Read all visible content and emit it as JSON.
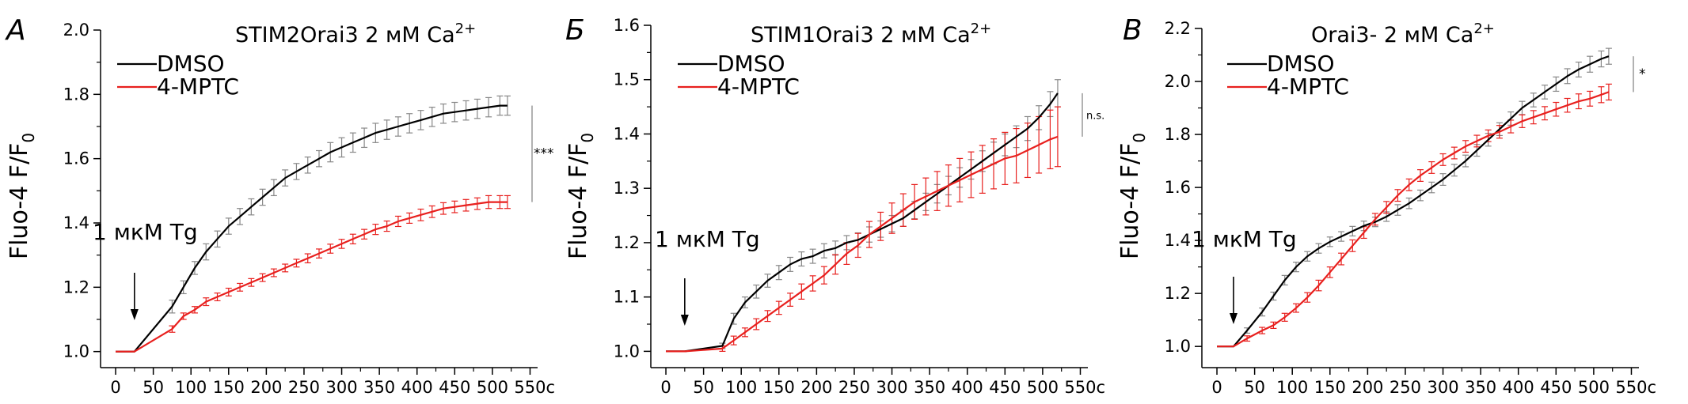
{
  "chart_data": [
    {
      "type": "line",
      "panel_label": "А",
      "title_main": "STIM2Orai3  2 мМ Ca",
      "title_sup": "2+",
      "ylabel_main": "Fluo-4  F/F",
      "ylabel_sub": "0",
      "x_unit": "c",
      "xlim": [
        -20,
        560
      ],
      "ylim": [
        0.95,
        2.0
      ],
      "xticks": [
        0,
        50,
        100,
        150,
        200,
        250,
        300,
        350,
        400,
        450,
        500,
        550
      ],
      "xtick_labels": [
        "0",
        "50",
        "100",
        "150",
        "200",
        "250",
        "300",
        "350",
        "400",
        "450",
        "500",
        "550"
      ],
      "yticks": [
        1.0,
        1.2,
        1.4,
        1.6,
        1.8,
        2.0
      ],
      "ytick_labels": [
        "1.0",
        "1.2",
        "1.4",
        "1.6",
        "1.8",
        "2.0"
      ],
      "annotation": "1 мкМ Tg",
      "annotation_x": 25,
      "significance": "***",
      "legend": [
        "DMSO",
        "4-MPTC"
      ],
      "series": [
        {
          "name": "DMSO",
          "color": "#000000",
          "errbar_color": "#888888",
          "x": [
            0,
            25,
            75,
            90,
            105,
            120,
            135,
            150,
            165,
            180,
            195,
            210,
            225,
            240,
            255,
            270,
            285,
            300,
            315,
            330,
            345,
            360,
            375,
            390,
            405,
            420,
            435,
            450,
            465,
            480,
            495,
            510,
            520
          ],
          "y": [
            1.0,
            1.0,
            1.14,
            1.2,
            1.26,
            1.31,
            1.35,
            1.39,
            1.42,
            1.45,
            1.48,
            1.51,
            1.54,
            1.56,
            1.58,
            1.6,
            1.62,
            1.635,
            1.65,
            1.665,
            1.68,
            1.69,
            1.7,
            1.71,
            1.72,
            1.73,
            1.74,
            1.745,
            1.75,
            1.755,
            1.76,
            1.765,
            1.765
          ],
          "err": [
            0,
            0,
            0.02,
            0.02,
            0.02,
            0.025,
            0.025,
            0.025,
            0.025,
            0.025,
            0.025,
            0.025,
            0.025,
            0.025,
            0.025,
            0.025,
            0.03,
            0.03,
            0.03,
            0.03,
            0.03,
            0.03,
            0.03,
            0.03,
            0.03,
            0.03,
            0.03,
            0.03,
            0.03,
            0.03,
            0.03,
            0.03,
            0.03
          ]
        },
        {
          "name": "4-MPTC",
          "color": "#e8201e",
          "errbar_color": "#e8201e",
          "x": [
            0,
            25,
            75,
            90,
            105,
            120,
            135,
            150,
            165,
            180,
            195,
            210,
            225,
            240,
            255,
            270,
            285,
            300,
            315,
            330,
            345,
            360,
            375,
            390,
            405,
            420,
            435,
            450,
            465,
            480,
            495,
            510,
            520
          ],
          "y": [
            1.0,
            1.0,
            1.07,
            1.11,
            1.13,
            1.155,
            1.17,
            1.185,
            1.2,
            1.215,
            1.23,
            1.245,
            1.26,
            1.275,
            1.29,
            1.305,
            1.32,
            1.335,
            1.35,
            1.365,
            1.38,
            1.39,
            1.405,
            1.415,
            1.425,
            1.435,
            1.445,
            1.45,
            1.455,
            1.46,
            1.465,
            1.465,
            1.465
          ],
          "err": [
            0,
            0,
            0.01,
            0.01,
            0.01,
            0.012,
            0.012,
            0.012,
            0.012,
            0.012,
            0.012,
            0.012,
            0.012,
            0.012,
            0.014,
            0.014,
            0.014,
            0.014,
            0.015,
            0.015,
            0.016,
            0.016,
            0.016,
            0.016,
            0.018,
            0.018,
            0.018,
            0.018,
            0.018,
            0.018,
            0.02,
            0.02,
            0.02
          ]
        }
      ]
    },
    {
      "type": "line",
      "panel_label": "Б",
      "title_main": "STIM1Orai3 2 мМ Ca",
      "title_sup": "2+",
      "ylabel_main": "Fluo-4  F/F",
      "ylabel_sub": "0",
      "x_unit": "c",
      "xlim": [
        -20,
        560
      ],
      "ylim": [
        0.97,
        1.6
      ],
      "xticks": [
        0,
        50,
        100,
        150,
        200,
        250,
        300,
        350,
        400,
        450,
        500,
        550
      ],
      "xtick_labels": [
        "0",
        "50",
        "100",
        "150",
        "200",
        "250",
        "300",
        "350",
        "400",
        "450",
        "500",
        "550"
      ],
      "yticks": [
        1.0,
        1.1,
        1.2,
        1.3,
        1.4,
        1.5,
        1.6
      ],
      "ytick_labels": [
        "1.0",
        "1.1",
        "1.2",
        "1.3",
        "1.4",
        "1.5",
        "1.6"
      ],
      "annotation": "1 мкМ Tg",
      "annotation_x": 25,
      "significance": "n.s.",
      "legend": [
        "DMSO",
        "4-MPTC"
      ],
      "series": [
        {
          "name": "DMSO",
          "color": "#000000",
          "errbar_color": "#888888",
          "x": [
            0,
            25,
            75,
            90,
            105,
            120,
            135,
            150,
            165,
            180,
            195,
            210,
            225,
            240,
            255,
            270,
            285,
            300,
            315,
            330,
            345,
            360,
            375,
            390,
            405,
            420,
            435,
            450,
            465,
            480,
            495,
            510,
            520
          ],
          "y": [
            1.0,
            1.0,
            1.01,
            1.06,
            1.09,
            1.11,
            1.13,
            1.145,
            1.16,
            1.17,
            1.175,
            1.185,
            1.19,
            1.2,
            1.205,
            1.215,
            1.225,
            1.235,
            1.245,
            1.26,
            1.275,
            1.29,
            1.305,
            1.32,
            1.335,
            1.35,
            1.365,
            1.38,
            1.395,
            1.41,
            1.43,
            1.455,
            1.475
          ],
          "err": [
            0,
            0,
            0.005,
            0.01,
            0.01,
            0.012,
            0.012,
            0.013,
            0.013,
            0.013,
            0.013,
            0.013,
            0.013,
            0.013,
            0.013,
            0.014,
            0.015,
            0.015,
            0.015,
            0.016,
            0.016,
            0.017,
            0.017,
            0.018,
            0.018,
            0.019,
            0.02,
            0.02,
            0.02,
            0.022,
            0.022,
            0.023,
            0.025
          ]
        },
        {
          "name": "4-MPTC",
          "color": "#e8201e",
          "errbar_color": "#e8201e",
          "x": [
            0,
            25,
            75,
            90,
            105,
            120,
            135,
            150,
            165,
            180,
            195,
            210,
            225,
            240,
            255,
            270,
            285,
            300,
            315,
            330,
            345,
            360,
            375,
            390,
            405,
            420,
            435,
            450,
            465,
            480,
            495,
            510,
            520
          ],
          "y": [
            1.0,
            1.0,
            1.005,
            1.02,
            1.035,
            1.05,
            1.065,
            1.08,
            1.095,
            1.11,
            1.125,
            1.14,
            1.16,
            1.18,
            1.195,
            1.215,
            1.23,
            1.245,
            1.26,
            1.275,
            1.285,
            1.295,
            1.305,
            1.315,
            1.325,
            1.335,
            1.345,
            1.355,
            1.36,
            1.37,
            1.38,
            1.39,
            1.395
          ],
          "err": [
            0,
            0,
            0.005,
            0.008,
            0.008,
            0.01,
            0.01,
            0.012,
            0.012,
            0.014,
            0.014,
            0.016,
            0.018,
            0.02,
            0.022,
            0.024,
            0.026,
            0.028,
            0.03,
            0.032,
            0.034,
            0.036,
            0.038,
            0.04,
            0.042,
            0.044,
            0.046,
            0.048,
            0.05,
            0.05,
            0.052,
            0.054,
            0.055
          ]
        }
      ]
    },
    {
      "type": "line",
      "panel_label": "В",
      "title_main": "Orai3-  2 мМ Ca",
      "title_sup": "2+",
      "ylabel_main": "Fluo-4  F/F",
      "ylabel_sub": "0",
      "x_unit": "c",
      "xlim": [
        -20,
        560
      ],
      "ylim": [
        0.92,
        2.2
      ],
      "xticks": [
        0,
        50,
        100,
        150,
        200,
        250,
        300,
        350,
        400,
        450,
        500,
        550
      ],
      "xtick_labels": [
        "0",
        "50",
        "100",
        "150",
        "200",
        "250",
        "300",
        "350",
        "400",
        "450",
        "500",
        "550"
      ],
      "yticks": [
        1.0,
        1.2,
        1.4,
        1.6,
        1.8,
        2.0,
        2.2
      ],
      "ytick_labels": [
        "1.0",
        "1.2",
        "1.4",
        "1.6",
        "1.8",
        "2.0",
        "2.2"
      ],
      "annotation": "1 мкМ Tg",
      "annotation_x": 22,
      "significance": "*",
      "legend": [
        "DMSO",
        "4-MPTC"
      ],
      "series": [
        {
          "name": "DMSO",
          "color": "#000000",
          "errbar_color": "#888888",
          "x": [
            0,
            22,
            40,
            60,
            75,
            90,
            105,
            120,
            135,
            150,
            165,
            180,
            195,
            210,
            225,
            240,
            255,
            270,
            285,
            300,
            315,
            330,
            345,
            360,
            375,
            390,
            405,
            420,
            435,
            450,
            465,
            480,
            495,
            510,
            520
          ],
          "y": [
            1.0,
            1.0,
            1.06,
            1.13,
            1.19,
            1.25,
            1.3,
            1.34,
            1.37,
            1.395,
            1.415,
            1.435,
            1.455,
            1.47,
            1.49,
            1.515,
            1.54,
            1.57,
            1.6,
            1.63,
            1.665,
            1.7,
            1.74,
            1.78,
            1.82,
            1.86,
            1.9,
            1.93,
            1.96,
            1.99,
            2.02,
            2.045,
            2.065,
            2.085,
            2.095
          ],
          "err": [
            0,
            0,
            0.01,
            0.015,
            0.015,
            0.018,
            0.018,
            0.018,
            0.018,
            0.018,
            0.018,
            0.018,
            0.018,
            0.018,
            0.018,
            0.02,
            0.02,
            0.02,
            0.02,
            0.022,
            0.022,
            0.022,
            0.022,
            0.024,
            0.024,
            0.025,
            0.025,
            0.026,
            0.026,
            0.027,
            0.028,
            0.028,
            0.03,
            0.03,
            0.03
          ]
        },
        {
          "name": "4-MPTC",
          "color": "#e8201e",
          "errbar_color": "#e8201e",
          "x": [
            0,
            22,
            40,
            60,
            75,
            90,
            105,
            120,
            135,
            150,
            165,
            180,
            195,
            210,
            225,
            240,
            255,
            270,
            285,
            300,
            315,
            330,
            345,
            360,
            375,
            390,
            405,
            420,
            435,
            450,
            465,
            480,
            495,
            510,
            520
          ],
          "y": [
            1.0,
            1.0,
            1.03,
            1.06,
            1.08,
            1.11,
            1.145,
            1.185,
            1.23,
            1.28,
            1.33,
            1.38,
            1.43,
            1.48,
            1.525,
            1.57,
            1.61,
            1.645,
            1.675,
            1.705,
            1.73,
            1.755,
            1.775,
            1.795,
            1.81,
            1.83,
            1.85,
            1.865,
            1.88,
            1.895,
            1.91,
            1.925,
            1.935,
            1.95,
            1.96
          ],
          "err": [
            0,
            0,
            0.01,
            0.012,
            0.012,
            0.015,
            0.016,
            0.018,
            0.02,
            0.02,
            0.022,
            0.022,
            0.022,
            0.022,
            0.022,
            0.022,
            0.022,
            0.022,
            0.022,
            0.022,
            0.022,
            0.022,
            0.022,
            0.022,
            0.024,
            0.024,
            0.024,
            0.025,
            0.025,
            0.026,
            0.026,
            0.028,
            0.028,
            0.03,
            0.03
          ]
        }
      ]
    }
  ]
}
